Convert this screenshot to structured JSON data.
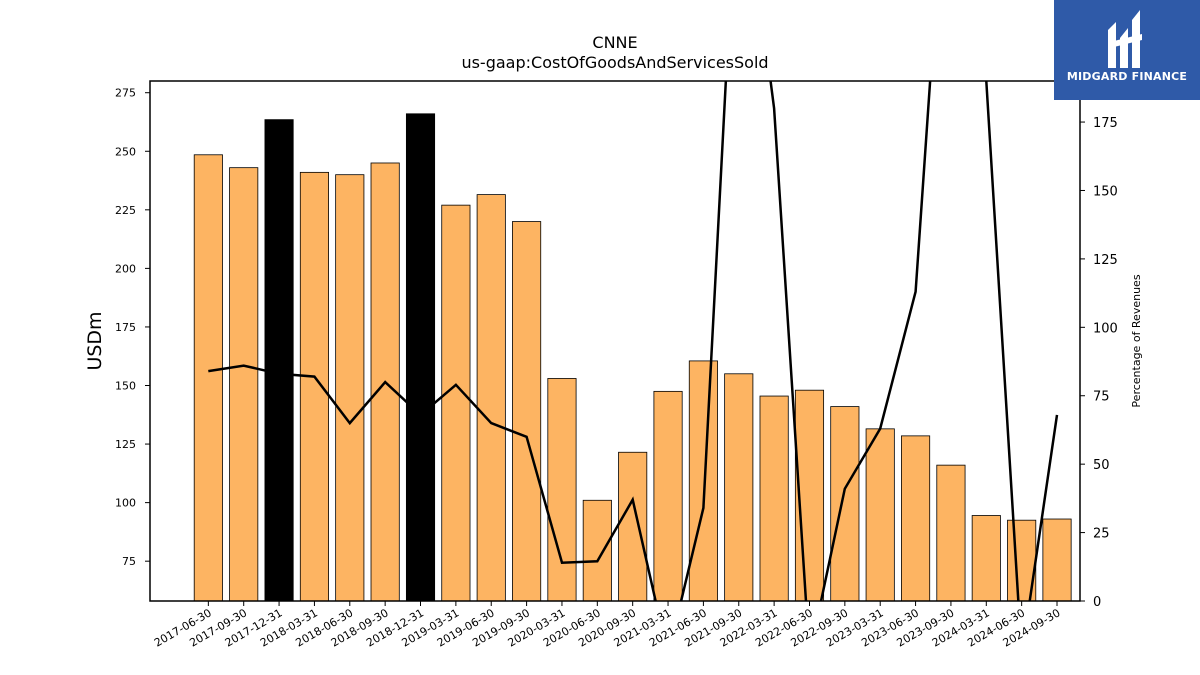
{
  "chart_data": {
    "type": "bar",
    "title": "CNNE",
    "subtitle": "us-gaap:CostOfGoodsAndServicesSold",
    "ylabel": "USDm",
    "y2label": "Percentage of Revenues",
    "ylim": [
      58,
      280
    ],
    "y2lim": [
      0,
      190
    ],
    "yticks": [
      75,
      100,
      125,
      150,
      175,
      200,
      225,
      250,
      275
    ],
    "y2ticks": [
      0,
      25,
      50,
      75,
      100,
      125,
      150,
      175
    ],
    "categories": [
      "2017-06-30",
      "2017-09-30",
      "2017-12-31",
      "2018-03-31",
      "2018-06-30",
      "2018-09-30",
      "2018-12-31",
      "2019-03-31",
      "2019-06-30",
      "2019-09-30",
      "2020-03-31",
      "2020-06-30",
      "2020-09-30",
      "2021-03-31",
      "2021-06-30",
      "2021-09-30",
      "2022-03-31",
      "2022-06-30",
      "2022-09-30",
      "2023-03-31",
      "2023-06-30",
      "2023-09-30",
      "2024-03-31",
      "2024-06-30",
      "2024-09-30"
    ],
    "series": [
      {
        "values": [
          248.5,
          243,
          263.5,
          241,
          240,
          245,
          266,
          227,
          231.5,
          220,
          153,
          101,
          121.5,
          147.5,
          160.5,
          155,
          145.5,
          148,
          141,
          131.5,
          128.5,
          116,
          94.5,
          92.5,
          93
        ],
        "highlighted": [
          false,
          false,
          true,
          false,
          false,
          false,
          true,
          false,
          false,
          false,
          false,
          false,
          false,
          false,
          false,
          false,
          false,
          false,
          false,
          false,
          false,
          false,
          false,
          false,
          false
        ]
      },
      {
        "type": "line",
        "axis": "secondary",
        "values": [
          84,
          86,
          83,
          82,
          65,
          80,
          68,
          79,
          65,
          60,
          14,
          14.5,
          37,
          -20,
          34,
          280,
          180,
          -20,
          41,
          63,
          113,
          300,
          190,
          -20,
          68
        ]
      }
    ],
    "colors": {
      "bar": "#fdb462",
      "bar_highlight": "#000000",
      "line": "#000000"
    },
    "grid": false
  },
  "logo": {
    "text": "MIDGARD FINANCE",
    "background": "#2f5aa8"
  }
}
